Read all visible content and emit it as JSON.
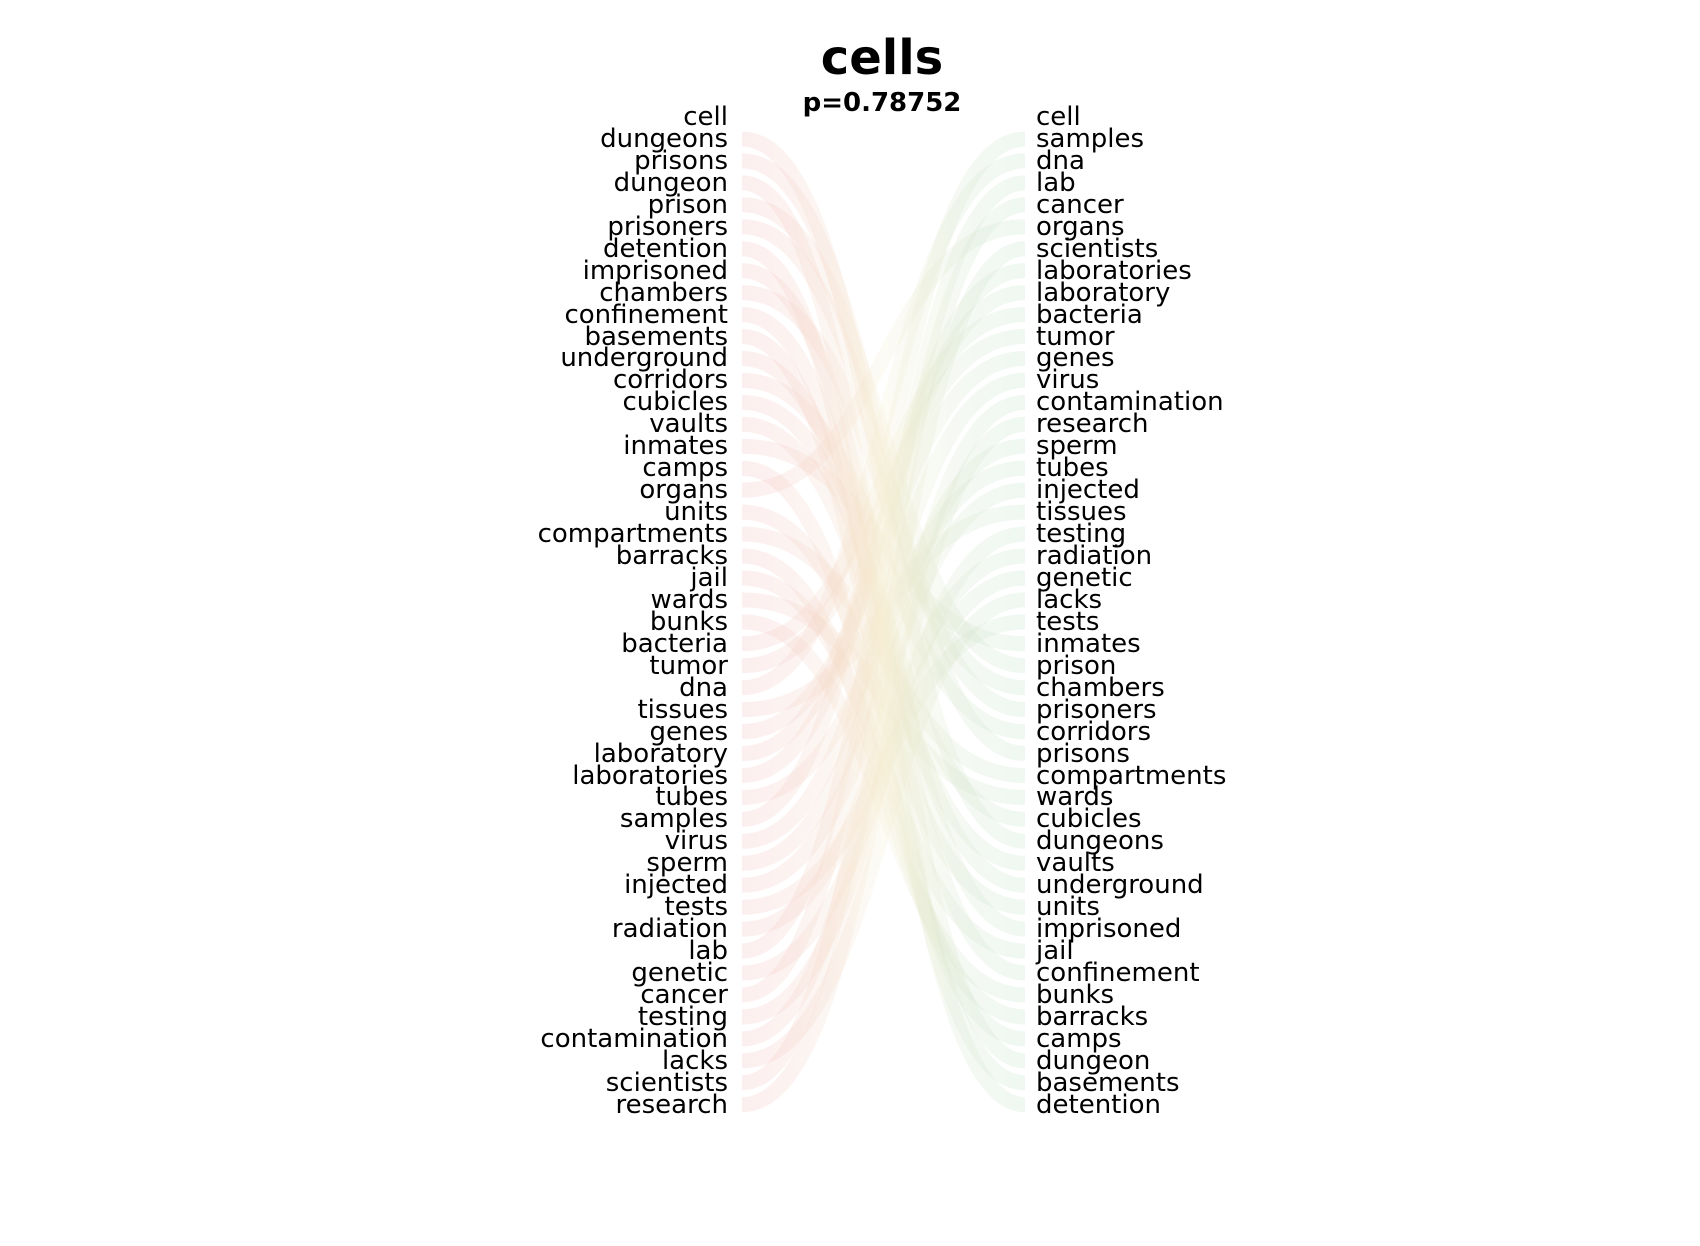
{
  "title": "cells",
  "subtitle": "p=0.78752",
  "colors": {
    "left_curve": "#f2b5b5",
    "right_curve": "#b8dcc4"
  },
  "left_words": [
    "cell",
    "dungeons",
    "prisons",
    "dungeon",
    "prison",
    "prisoners",
    "detention",
    "imprisoned",
    "chambers",
    "confinement",
    "basements",
    "underground",
    "corridors",
    "cubicles",
    "vaults",
    "inmates",
    "camps",
    "organs",
    "units",
    "compartments",
    "barracks",
    "jail",
    "wards",
    "bunks",
    "bacteria",
    "tumor",
    "dna",
    "tissues",
    "genes",
    "laboratory",
    "laboratories",
    "tubes",
    "samples",
    "virus",
    "sperm",
    "injected",
    "tests",
    "radiation",
    "lab",
    "genetic",
    "cancer",
    "testing",
    "contamination",
    "lacks",
    "scientists",
    "research"
  ],
  "right_words": [
    "cell",
    "samples",
    "dna",
    "lab",
    "cancer",
    "organs",
    "scientists",
    "laboratories",
    "laboratory",
    "bacteria",
    "tumor",
    "genes",
    "virus",
    "contamination",
    "research",
    "sperm",
    "tubes",
    "injected",
    "tissues",
    "testing",
    "radiation",
    "genetic",
    "lacks",
    "tests",
    "inmates",
    "prison",
    "chambers",
    "prisoners",
    "corridors",
    "prisons",
    "compartments",
    "wards",
    "cubicles",
    "dungeons",
    "vaults",
    "underground",
    "units",
    "imprisoned",
    "jail",
    "confinement",
    "bunks",
    "barracks",
    "camps",
    "dungeon",
    "basements",
    "detention"
  ]
}
